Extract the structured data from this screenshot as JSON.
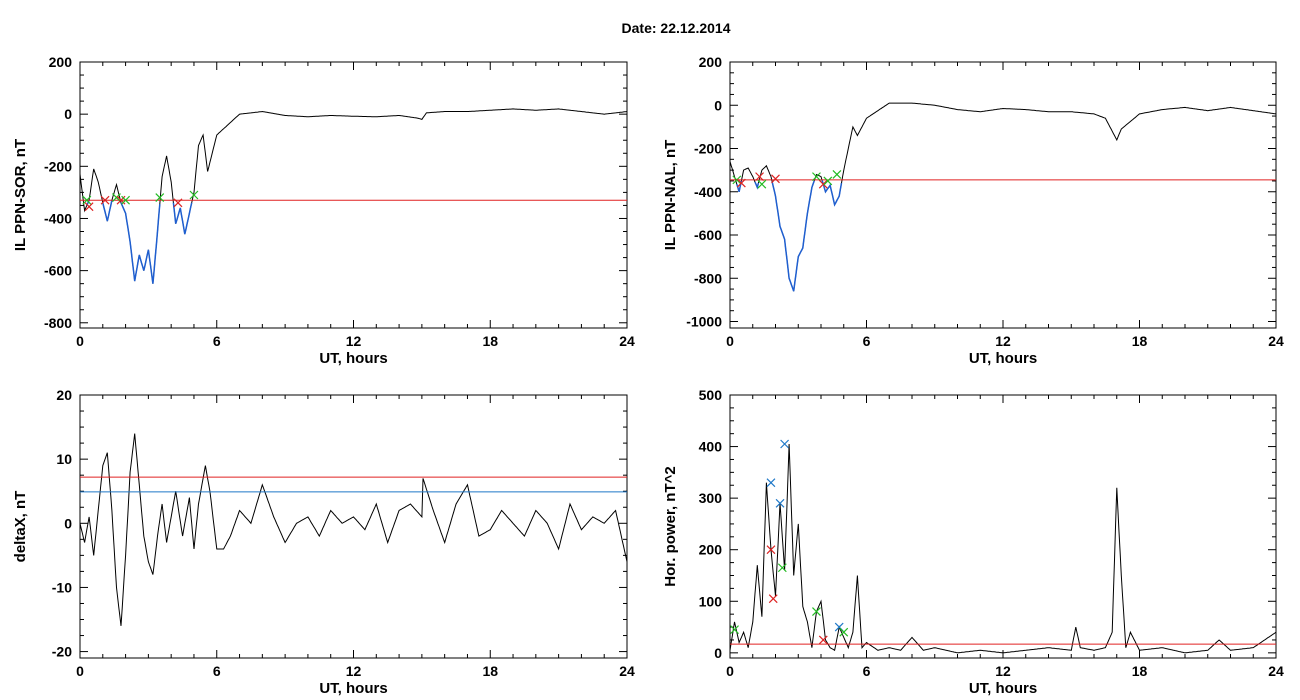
{
  "title": "Date:  22.12.2014",
  "colors": {
    "threshold_red": "#e02020",
    "threshold_blue": "#1f78c8",
    "trace": "#000000",
    "highlight": "#1f5fd0",
    "marker_green": "#22bb22",
    "marker_red": "#dd2222"
  },
  "chart_data": [
    {
      "type": "line",
      "xlabel": "UT, hours",
      "ylabel": "IL PPN-SOR, nT",
      "xlim": [
        0,
        24
      ],
      "ylim": [
        -820,
        200
      ],
      "xticks": [
        "0",
        "6",
        "12",
        "18",
        "24"
      ],
      "yticks": [
        "200",
        "0",
        "-200",
        "-400",
        "-600",
        "-800"
      ],
      "ytick_values": [
        200,
        0,
        -200,
        -400,
        -600,
        -800
      ],
      "series": [
        {
          "x": [
            0,
            0.2,
            0.4,
            0.6,
            0.8,
            1.0,
            1.2,
            1.4,
            1.6,
            1.8,
            2.0,
            2.2,
            2.4,
            2.6,
            2.8,
            3.0,
            3.2,
            3.4,
            3.6,
            3.8,
            4.0,
            4.2,
            4.4,
            4.6,
            4.8,
            5.0,
            5.2,
            5.4,
            5.6,
            6.0,
            7,
            8,
            9,
            10,
            11,
            12,
            13,
            14,
            14.8,
            15.0,
            15.2,
            16,
            17,
            18,
            19,
            20,
            21,
            22,
            23,
            24
          ],
          "values": [
            -230,
            -370,
            -330,
            -210,
            -260,
            -340,
            -410,
            -330,
            -270,
            -340,
            -380,
            -490,
            -640,
            -540,
            -600,
            -520,
            -650,
            -450,
            -240,
            -160,
            -260,
            -420,
            -360,
            -460,
            -380,
            -300,
            -120,
            -80,
            -220,
            -80,
            0,
            10,
            -5,
            -10,
            -5,
            -8,
            -10,
            -5,
            -15,
            -20,
            5,
            10,
            10,
            15,
            20,
            15,
            20,
            10,
            0,
            10
          ]
        }
      ],
      "hlines": [
        {
          "y": -330,
          "color": "threshold_red"
        }
      ],
      "highlight_range": [
        0.3,
        5.0
      ],
      "markers": [
        {
          "x": 0.3,
          "y": -330,
          "c": "marker_green"
        },
        {
          "x": 0.4,
          "y": -355,
          "c": "marker_red"
        },
        {
          "x": 1.1,
          "y": -330,
          "c": "marker_red"
        },
        {
          "x": 1.6,
          "y": -320,
          "c": "marker_green"
        },
        {
          "x": 1.8,
          "y": -330,
          "c": "marker_red"
        },
        {
          "x": 2.0,
          "y": -330,
          "c": "marker_green"
        },
        {
          "x": 3.5,
          "y": -320,
          "c": "marker_green"
        },
        {
          "x": 4.3,
          "y": -340,
          "c": "marker_red"
        },
        {
          "x": 5.0,
          "y": -310,
          "c": "marker_green"
        }
      ]
    },
    {
      "type": "line",
      "xlabel": "UT, hours",
      "ylabel": "IL PPN-NAL, nT",
      "xlim": [
        0,
        24
      ],
      "ylim": [
        -1030,
        200
      ],
      "xticks": [
        "0",
        "6",
        "12",
        "18",
        "24"
      ],
      "yticks": [
        "200",
        "0",
        "-200",
        "-400",
        "-600",
        "-800",
        "-1000"
      ],
      "ytick_values": [
        200,
        0,
        -200,
        -400,
        -600,
        -800,
        -1000
      ],
      "series": [
        {
          "x": [
            0,
            0.2,
            0.4,
            0.6,
            0.8,
            1.0,
            1.2,
            1.4,
            1.6,
            1.8,
            2.0,
            2.2,
            2.4,
            2.6,
            2.8,
            3.0,
            3.2,
            3.4,
            3.6,
            3.8,
            4.0,
            4.2,
            4.4,
            4.6,
            4.8,
            5.0,
            5.2,
            5.4,
            5.6,
            6.0,
            7,
            8,
            9,
            10,
            11,
            12,
            13,
            14,
            15,
            16,
            16.5,
            16.8,
            17.0,
            17.2,
            18,
            19,
            20,
            21,
            22,
            23,
            24
          ],
          "values": [
            -260,
            -330,
            -400,
            -300,
            -290,
            -330,
            -380,
            -300,
            -280,
            -330,
            -420,
            -560,
            -620,
            -800,
            -860,
            -700,
            -660,
            -500,
            -380,
            -320,
            -330,
            -400,
            -370,
            -460,
            -420,
            -300,
            -200,
            -100,
            -140,
            -60,
            10,
            10,
            0,
            -20,
            -30,
            -15,
            -20,
            -30,
            -30,
            -40,
            -60,
            -120,
            -160,
            -110,
            -40,
            -20,
            -10,
            -25,
            -10,
            -25,
            -40
          ]
        }
      ],
      "hlines": [
        {
          "y": -345,
          "color": "threshold_red"
        }
      ],
      "highlight_range": [
        0.3,
        5.0
      ],
      "markers": [
        {
          "x": 0.3,
          "y": -345,
          "c": "marker_green"
        },
        {
          "x": 0.5,
          "y": -360,
          "c": "marker_red"
        },
        {
          "x": 1.3,
          "y": -330,
          "c": "marker_red"
        },
        {
          "x": 1.4,
          "y": -365,
          "c": "marker_green"
        },
        {
          "x": 2.0,
          "y": -340,
          "c": "marker_red"
        },
        {
          "x": 3.8,
          "y": -330,
          "c": "marker_green"
        },
        {
          "x": 4.1,
          "y": -365,
          "c": "marker_red"
        },
        {
          "x": 4.3,
          "y": -350,
          "c": "marker_green"
        },
        {
          "x": 4.7,
          "y": -320,
          "c": "marker_green"
        }
      ]
    },
    {
      "type": "line",
      "xlabel": "UT, hours",
      "ylabel": "deltaX, nT",
      "xlim": [
        0,
        24
      ],
      "ylim": [
        -21,
        20
      ],
      "xticks": [
        "0",
        "6",
        "12",
        "18",
        "24"
      ],
      "yticks": [
        "20",
        "10",
        "0",
        "-10",
        "-20"
      ],
      "ytick_values": [
        20,
        10,
        0,
        -10,
        -20
      ],
      "series": [
        {
          "x": [
            0,
            0.2,
            0.4,
            0.6,
            0.8,
            1.0,
            1.2,
            1.4,
            1.6,
            1.8,
            2.0,
            2.2,
            2.4,
            2.6,
            2.8,
            3.0,
            3.2,
            3.4,
            3.6,
            3.8,
            4.0,
            4.2,
            4.5,
            4.8,
            5.0,
            5.2,
            5.5,
            5.7,
            6.0,
            6.3,
            6.6,
            7.0,
            7.5,
            8.0,
            8.5,
            9.0,
            9.5,
            10,
            10.5,
            11,
            11.5,
            12,
            12.5,
            13,
            13.5,
            14,
            14.5,
            15.0,
            15.05,
            15.5,
            16,
            16.5,
            17,
            17.5,
            18,
            18.5,
            19,
            19.5,
            20,
            20.5,
            21,
            21.5,
            22,
            22.5,
            23,
            23.5,
            24
          ],
          "values": [
            0,
            -3,
            1,
            -5,
            2,
            9,
            11,
            2,
            -10,
            -16,
            -5,
            8,
            14,
            6,
            -2,
            -6,
            -8,
            -2,
            3,
            -3,
            1,
            5,
            -2,
            4,
            -4,
            3,
            9,
            5,
            -4,
            -4,
            -2,
            2,
            0,
            6,
            1,
            -3,
            0,
            1,
            -2,
            2,
            0,
            1,
            -1,
            3,
            -3,
            2,
            3,
            1,
            7,
            2,
            -3,
            3,
            6,
            -2,
            -1,
            2,
            0,
            -2,
            2,
            0,
            -4,
            3,
            -1,
            1,
            0,
            2,
            -6
          ]
        }
      ],
      "hlines": [
        {
          "y": 7.2,
          "color": "threshold_red"
        },
        {
          "y": 4.9,
          "color": "threshold_blue"
        }
      ],
      "markers": []
    },
    {
      "type": "line",
      "xlabel": "UT, hours",
      "ylabel": "Hor. power, nT^2",
      "xlim": [
        0,
        24
      ],
      "ylim": [
        -10,
        500
      ],
      "xticks": [
        "0",
        "6",
        "12",
        "18",
        "24"
      ],
      "yticks": [
        "500",
        "400",
        "300",
        "200",
        "100",
        "0"
      ],
      "ytick_values": [
        500,
        400,
        300,
        200,
        100,
        0
      ],
      "series": [
        {
          "x": [
            0,
            0.2,
            0.4,
            0.6,
            0.8,
            1.0,
            1.2,
            1.4,
            1.6,
            1.8,
            2.0,
            2.2,
            2.4,
            2.6,
            2.8,
            3.0,
            3.2,
            3.4,
            3.6,
            3.8,
            4.0,
            4.2,
            4.4,
            4.6,
            4.8,
            5.0,
            5.2,
            5.4,
            5.6,
            5.8,
            6.0,
            6.5,
            7,
            7.5,
            8.0,
            8.5,
            9,
            10,
            11,
            12,
            13,
            14,
            15,
            15.2,
            15.4,
            16,
            16.5,
            16.8,
            17.0,
            17.2,
            17.4,
            17.6,
            18,
            19,
            20,
            21,
            21.5,
            22,
            23,
            24
          ],
          "values": [
            5,
            60,
            20,
            40,
            10,
            60,
            170,
            70,
            330,
            200,
            110,
            290,
            160,
            405,
            150,
            250,
            90,
            60,
            10,
            80,
            100,
            25,
            10,
            5,
            50,
            30,
            10,
            40,
            150,
            10,
            20,
            5,
            10,
            5,
            30,
            5,
            10,
            0,
            5,
            0,
            5,
            10,
            5,
            50,
            10,
            5,
            10,
            40,
            320,
            150,
            10,
            40,
            5,
            10,
            0,
            5,
            25,
            5,
            10,
            40
          ]
        }
      ],
      "hlines": [
        {
          "y": 17,
          "color": "threshold_red"
        }
      ],
      "markers": [
        {
          "x": 1.8,
          "y": 330,
          "c": "threshold_blue"
        },
        {
          "x": 2.2,
          "y": 290,
          "c": "threshold_blue"
        },
        {
          "x": 2.4,
          "y": 405,
          "c": "threshold_blue"
        },
        {
          "x": 4.8,
          "y": 50,
          "c": "threshold_blue"
        },
        {
          "x": 1.8,
          "y": 200,
          "c": "marker_red"
        },
        {
          "x": 1.9,
          "y": 105,
          "c": "marker_red"
        },
        {
          "x": 4.1,
          "y": 25,
          "c": "marker_red"
        },
        {
          "x": 2.3,
          "y": 165,
          "c": "marker_green"
        },
        {
          "x": 3.8,
          "y": 80,
          "c": "marker_green"
        },
        {
          "x": 5.0,
          "y": 40,
          "c": "marker_green"
        },
        {
          "x": 0.2,
          "y": 45,
          "c": "marker_green"
        }
      ]
    }
  ]
}
